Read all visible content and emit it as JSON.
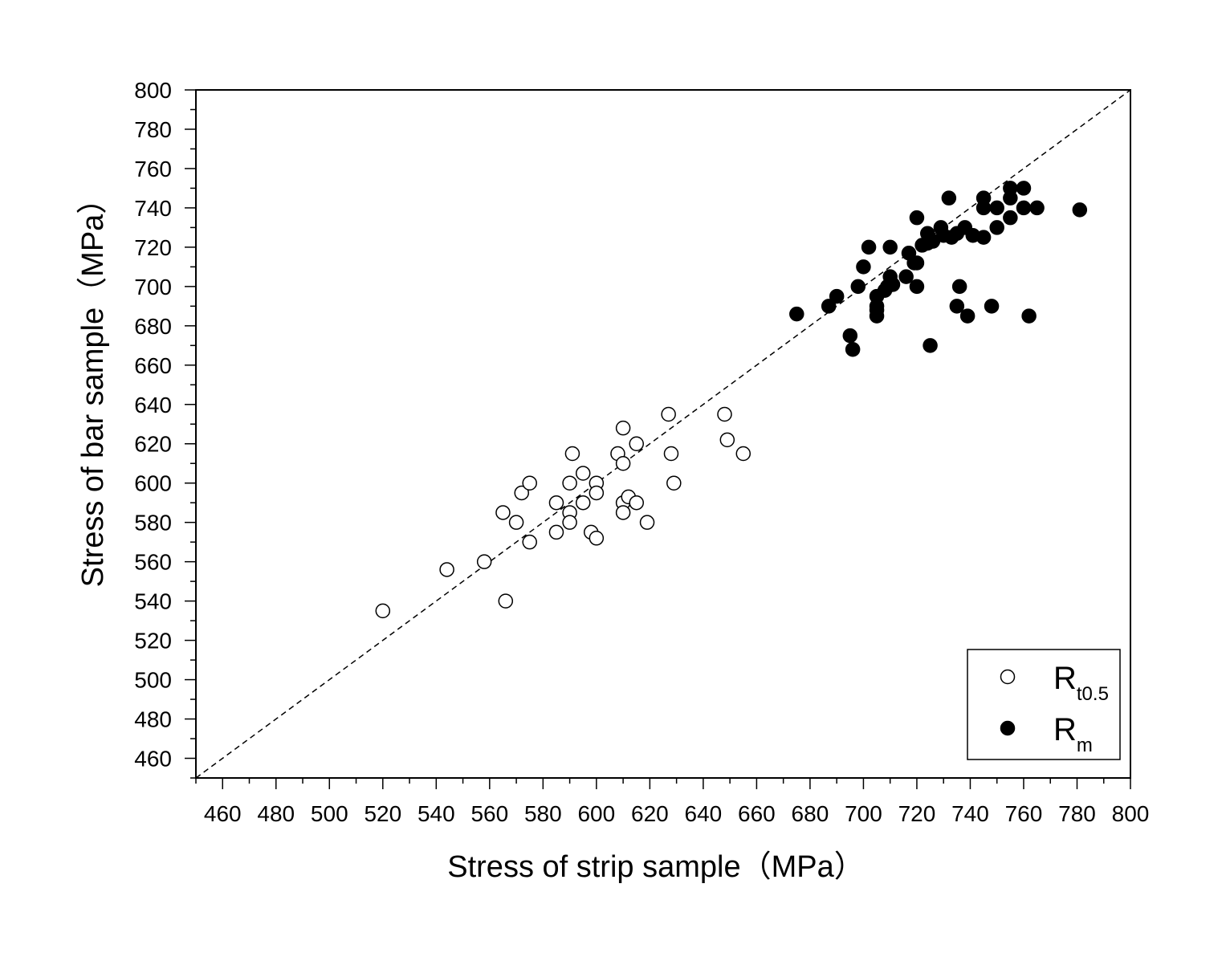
{
  "chart_data": {
    "type": "scatter",
    "xlabel": "Stress of strip sample（MPa）",
    "ylabel": "Stress of bar sample（MPa）",
    "xlim": [
      450,
      800
    ],
    "ylim": [
      450,
      800
    ],
    "x_ticks": [
      460,
      480,
      500,
      520,
      540,
      560,
      580,
      600,
      620,
      640,
      660,
      680,
      700,
      720,
      740,
      760,
      780,
      800
    ],
    "y_ticks": [
      460,
      480,
      500,
      520,
      540,
      560,
      580,
      600,
      620,
      640,
      660,
      680,
      700,
      720,
      740,
      760,
      780,
      800
    ],
    "grid": false,
    "legend_position": "bottom-right",
    "reference_line": {
      "style": "dashed",
      "from": [
        450,
        450
      ],
      "to": [
        800,
        800
      ]
    },
    "series": [
      {
        "name": "R",
        "name_sub": "t0.5",
        "marker": "open-circle",
        "color": "#000000",
        "points": [
          [
            520,
            535
          ],
          [
            544,
            556
          ],
          [
            558,
            560
          ],
          [
            566,
            540
          ],
          [
            565,
            585
          ],
          [
            570,
            580
          ],
          [
            572,
            595
          ],
          [
            575,
            600
          ],
          [
            575,
            570
          ],
          [
            585,
            590
          ],
          [
            585,
            575
          ],
          [
            590,
            600
          ],
          [
            590,
            585
          ],
          [
            590,
            580
          ],
          [
            591,
            615
          ],
          [
            595,
            605
          ],
          [
            595,
            590
          ],
          [
            598,
            575
          ],
          [
            600,
            600
          ],
          [
            600,
            595
          ],
          [
            600,
            572
          ],
          [
            608,
            615
          ],
          [
            610,
            628
          ],
          [
            610,
            610
          ],
          [
            610,
            590
          ],
          [
            610,
            585
          ],
          [
            612,
            593
          ],
          [
            615,
            620
          ],
          [
            615,
            590
          ],
          [
            619,
            580
          ],
          [
            627,
            635
          ],
          [
            628,
            615
          ],
          [
            629,
            600
          ],
          [
            648,
            635
          ],
          [
            649,
            622
          ],
          [
            655,
            615
          ]
        ]
      },
      {
        "name": "R",
        "name_sub": "m",
        "marker": "filled-circle",
        "color": "#000000",
        "points": [
          [
            675,
            686
          ],
          [
            687,
            690
          ],
          [
            690,
            695
          ],
          [
            695,
            675
          ],
          [
            696,
            668
          ],
          [
            698,
            700
          ],
          [
            700,
            710
          ],
          [
            702,
            720
          ],
          [
            705,
            695
          ],
          [
            705,
            690
          ],
          [
            705,
            688
          ],
          [
            705,
            685
          ],
          [
            708,
            698
          ],
          [
            709,
            700
          ],
          [
            710,
            705
          ],
          [
            710,
            720
          ],
          [
            711,
            701
          ],
          [
            716,
            705
          ],
          [
            717,
            717
          ],
          [
            719,
            712
          ],
          [
            720,
            735
          ],
          [
            720,
            712
          ],
          [
            720,
            700
          ],
          [
            722,
            721
          ],
          [
            724,
            727
          ],
          [
            724,
            722
          ],
          [
            725,
            670
          ],
          [
            726,
            723
          ],
          [
            729,
            730
          ],
          [
            730,
            726
          ],
          [
            732,
            745
          ],
          [
            733,
            725
          ],
          [
            735,
            690
          ],
          [
            735,
            727
          ],
          [
            736,
            700
          ],
          [
            738,
            730
          ],
          [
            739,
            685
          ],
          [
            741,
            726
          ],
          [
            745,
            745
          ],
          [
            745,
            740
          ],
          [
            745,
            725
          ],
          [
            748,
            690
          ],
          [
            750,
            740
          ],
          [
            750,
            730
          ],
          [
            755,
            750
          ],
          [
            755,
            745
          ],
          [
            755,
            735
          ],
          [
            760,
            750
          ],
          [
            760,
            740
          ],
          [
            762,
            685
          ],
          [
            765,
            740
          ],
          [
            781,
            739
          ]
        ]
      }
    ]
  }
}
